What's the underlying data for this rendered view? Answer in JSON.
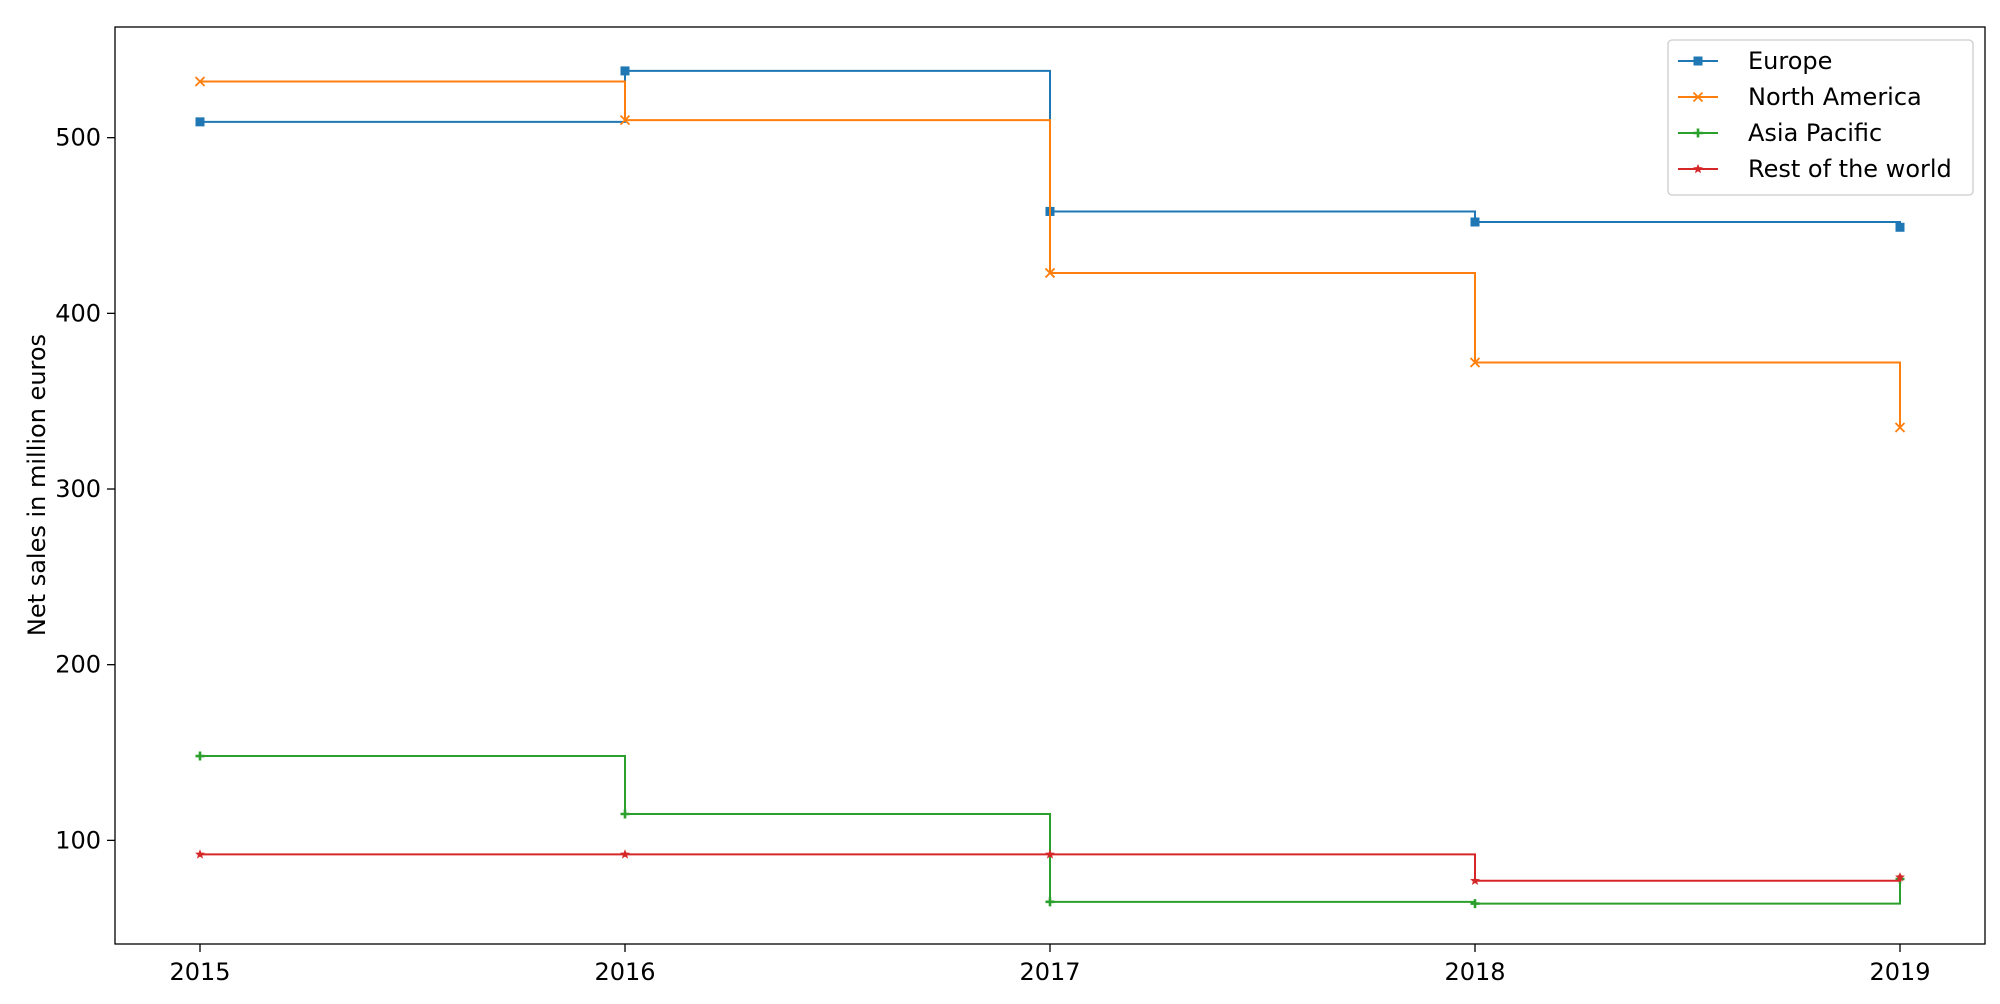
{
  "chart_data": {
    "type": "line",
    "step": "post",
    "title": "",
    "xlabel": "",
    "ylabel": "Net sales in million euros",
    "x": [
      "2015",
      "2016",
      "2017",
      "2018",
      "2019"
    ],
    "xlim": [
      2014.8,
      2019.2
    ],
    "ylim": [
      41,
      563
    ],
    "y_ticks": [
      100,
      200,
      300,
      400,
      500
    ],
    "grid": false,
    "legend_position": "top-right",
    "series": [
      {
        "name": "Europe",
        "values": [
          509,
          538,
          458,
          452,
          449
        ],
        "color": "#1f77b4",
        "marker": "square"
      },
      {
        "name": "North America",
        "values": [
          532,
          510,
          423,
          372,
          335
        ],
        "color": "#ff7f0e",
        "marker": "x"
      },
      {
        "name": "Asia Pacific",
        "values": [
          148,
          115,
          65,
          64,
          78
        ],
        "color": "#2ca02c",
        "marker": "plus"
      },
      {
        "name": "Rest of the world",
        "values": [
          92,
          92,
          92,
          77,
          79
        ],
        "color": "#d62728",
        "marker": "star"
      }
    ]
  }
}
